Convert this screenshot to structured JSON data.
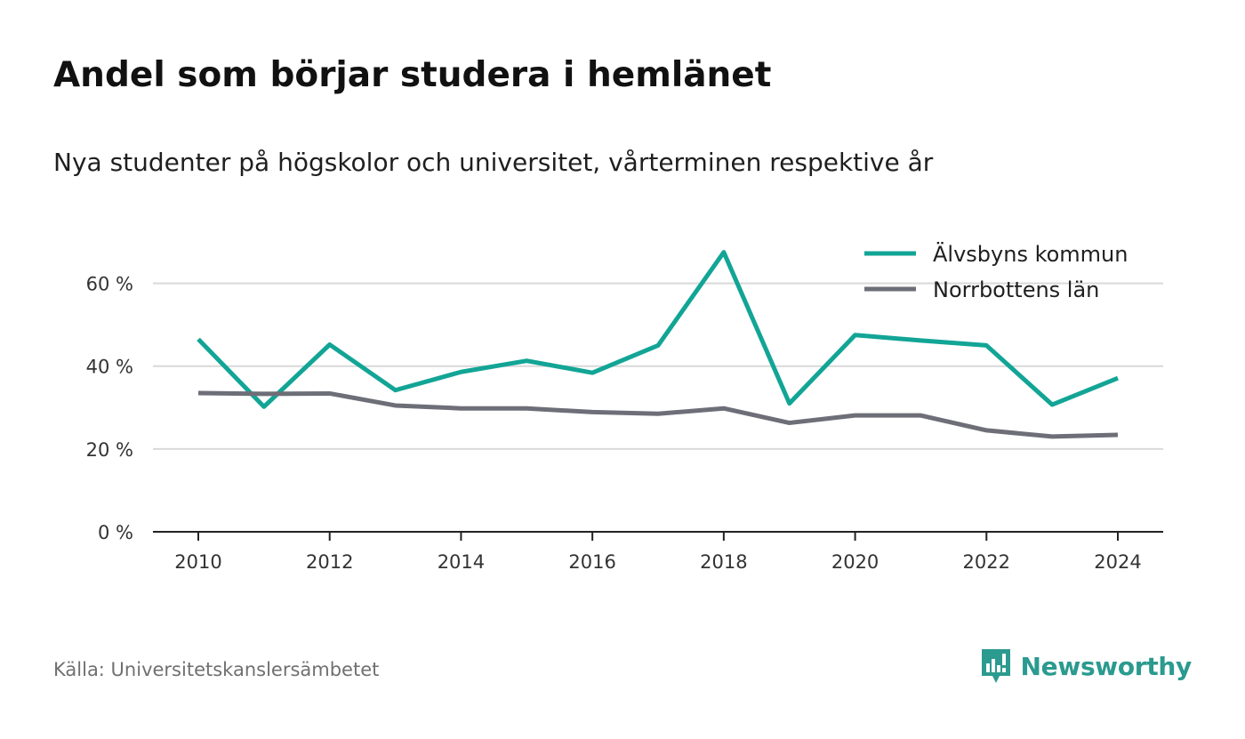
{
  "title": "Andel som börjar studera i hemlänet",
  "subtitle": "Nya studenter på högskolor och universitet, vårterminen respektive år",
  "source": "Källa: Universitetskanslersämbetet",
  "brand": {
    "name": "Newsworthy",
    "icon": "newsworthy-logo-icon",
    "color": "#2b9a8f"
  },
  "chart_data": {
    "type": "line",
    "title": "Andel som börjar studera i hemlänet",
    "x": [
      2010,
      2011,
      2012,
      2013,
      2014,
      2015,
      2016,
      2017,
      2018,
      2019,
      2020,
      2021,
      2022,
      2023,
      2024
    ],
    "x_ticks": [
      "2010",
      "2012",
      "2014",
      "2016",
      "2018",
      "2020",
      "2022",
      "2024"
    ],
    "y_ticks": [
      "0 %",
      "20 %",
      "40 %",
      "60 %"
    ],
    "ylim": [
      0,
      70
    ],
    "grid": true,
    "legend_position": "top-right",
    "series": [
      {
        "name": "Älvsbyns kommun",
        "color": "#12a596",
        "values": [
          46.5,
          30.2,
          45.2,
          34.2,
          38.6,
          41.3,
          38.4,
          45.0,
          67.5,
          31.0,
          47.5,
          46.2,
          45.0,
          30.7,
          37.1
        ]
      },
      {
        "name": "Norrbottens län",
        "color": "#6e6e78",
        "values": [
          33.5,
          33.3,
          33.4,
          30.5,
          29.8,
          29.8,
          28.9,
          28.5,
          29.8,
          26.3,
          28.1,
          28.1,
          24.5,
          23.0,
          23.4
        ]
      }
    ]
  }
}
